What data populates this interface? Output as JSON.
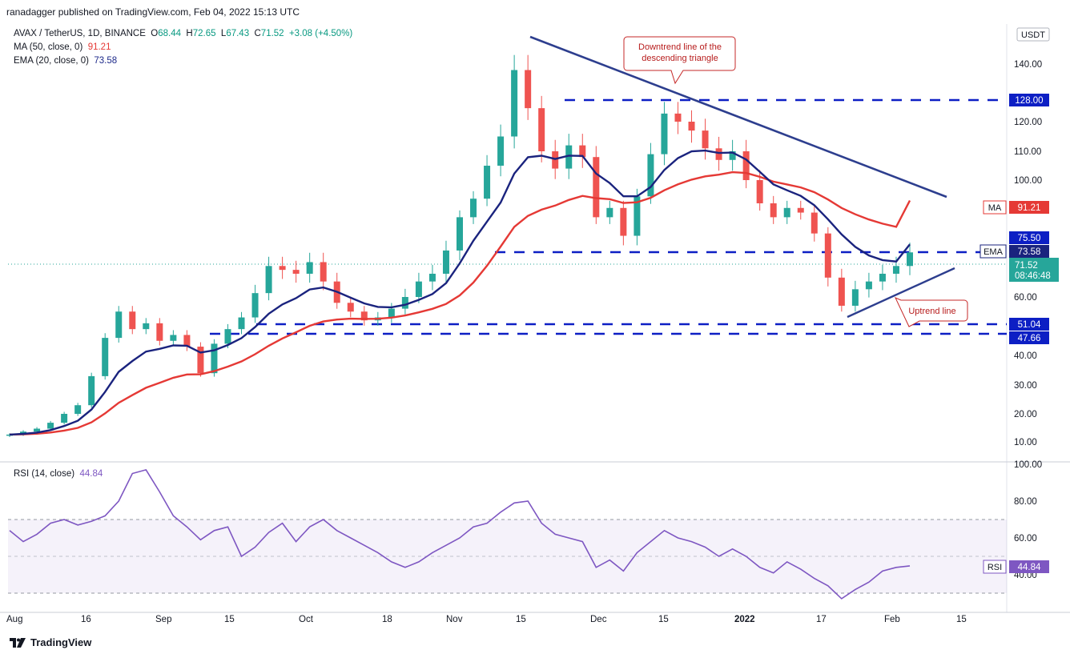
{
  "publisher": "ranadagger published on TradingView.com, Feb 04, 2022 15:13 UTC",
  "legend": {
    "symbol": "AVAX / TetherUS, 1D, BINANCE",
    "o_label": "O",
    "o": "68.44",
    "h_label": "H",
    "h": "72.65",
    "l_label": "L",
    "l": "67.43",
    "c_label": "C",
    "c": "71.52",
    "change": "+3.08 (+4.50%)",
    "ma_label": "MA (50, close, 0)",
    "ma_value": "91.21",
    "ema_label": "EMA (20, close, 0)",
    "ema_value": "73.58",
    "rsi_label": "RSI (14, close)",
    "rsi_value": "44.84"
  },
  "currency": "USDT",
  "brand": "TradingView",
  "colors": {
    "up": "#26a69a",
    "down": "#ef5350",
    "ma": "#e53935",
    "ema": "#1a237e",
    "rsi": "#7e57c2",
    "level": "#0d1fc4",
    "trend": "#2d3e8e"
  },
  "chart_data": {
    "type": "candlestick",
    "x_tick_labels": [
      "Aug",
      "16",
      "Sep",
      "15",
      "Oct",
      "18",
      "Nov",
      "15",
      "Dec",
      "15",
      "2022",
      "17",
      "Feb",
      "15"
    ],
    "y_tick_labels": [
      "10.00",
      "20.00",
      "30.00",
      "40.00",
      "60.00",
      "100.00",
      "110.00",
      "120.00",
      "140.00"
    ],
    "price_axis_labels": {
      "level_128": "128.00",
      "level_75": "75.50",
      "level_51": "51.04",
      "level_47": "47.66",
      "ema": "EMA",
      "ema_value": "73.58",
      "ma": "MA",
      "ma_value": "91.21",
      "last": "71.52",
      "countdown": "08:46:48"
    },
    "levels": [
      128.0,
      75.5,
      51.04,
      47.66
    ],
    "annotations": [
      "Downtrend line of the descending triangle",
      "Uptrend line"
    ],
    "close_prices": [
      13,
      14,
      15,
      17,
      20,
      23,
      33,
      46,
      55,
      49,
      51,
      45,
      47,
      43,
      34,
      44,
      49,
      53,
      61,
      68,
      67,
      66,
      69,
      64,
      58,
      55,
      52,
      53,
      56,
      60,
      64,
      66,
      72,
      84,
      92,
      105,
      115,
      138,
      125,
      110,
      104,
      112,
      108,
      84,
      88,
      76,
      93,
      109,
      123,
      120,
      117,
      111,
      107,
      110,
      100,
      90,
      84,
      88,
      86,
      77,
      65,
      57,
      62,
      64,
      66,
      68,
      71.52
    ],
    "ma50_last": 91.21,
    "ema20_last": 73.58,
    "rsi": {
      "ylim": [
        0,
        100
      ],
      "y_tick_labels": [
        "40.00",
        "60.00",
        "80.00",
        "100.00"
      ],
      "bands": [
        30,
        70
      ],
      "values": [
        64,
        58,
        62,
        68,
        70,
        67,
        69,
        72,
        80,
        95,
        97,
        85,
        72,
        66,
        59,
        64,
        66,
        50,
        55,
        63,
        68,
        58,
        66,
        70,
        64,
        60,
        56,
        52,
        47,
        44,
        47,
        52,
        56,
        60,
        66,
        68,
        74,
        79,
        80,
        68,
        62,
        60,
        58,
        44,
        48,
        42,
        52,
        58,
        64,
        60,
        58,
        55,
        50,
        54,
        50,
        44,
        41,
        47,
        43,
        38,
        34,
        27,
        32,
        36,
        42,
        44,
        44.84
      ],
      "axis_label": "RSI",
      "axis_value": "44.84"
    }
  }
}
